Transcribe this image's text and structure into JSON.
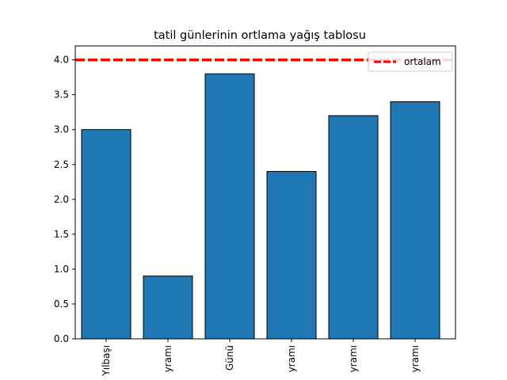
{
  "chart_data": {
    "type": "bar",
    "title": "tatil günlerinin ortlama yağış tablosu",
    "xlabel": "",
    "ylabel": "",
    "categories": [
      "Yılbaşı",
      "yramı",
      "Günü",
      "yramı",
      "yramı",
      "yramı"
    ],
    "values": [
      3.0,
      0.9,
      3.8,
      2.4,
      3.2,
      3.4
    ],
    "ylim": [
      0,
      4.2
    ],
    "yticks": [
      0.0,
      0.5,
      1.0,
      1.5,
      2.0,
      2.5,
      3.0,
      3.5,
      4.0
    ],
    "ytick_labels": [
      "0.0",
      "0.5",
      "1.0",
      "1.5",
      "2.0",
      "2.5",
      "3.0",
      "3.5",
      "4.0"
    ],
    "reference_line": {
      "value": 4.0,
      "label": "ortalam",
      "color": "#ff0000",
      "style": "dashed"
    },
    "bar_color": "#1f77b4",
    "bar_edge_color": "#000000",
    "grid": false,
    "legend_position": "top-right"
  }
}
